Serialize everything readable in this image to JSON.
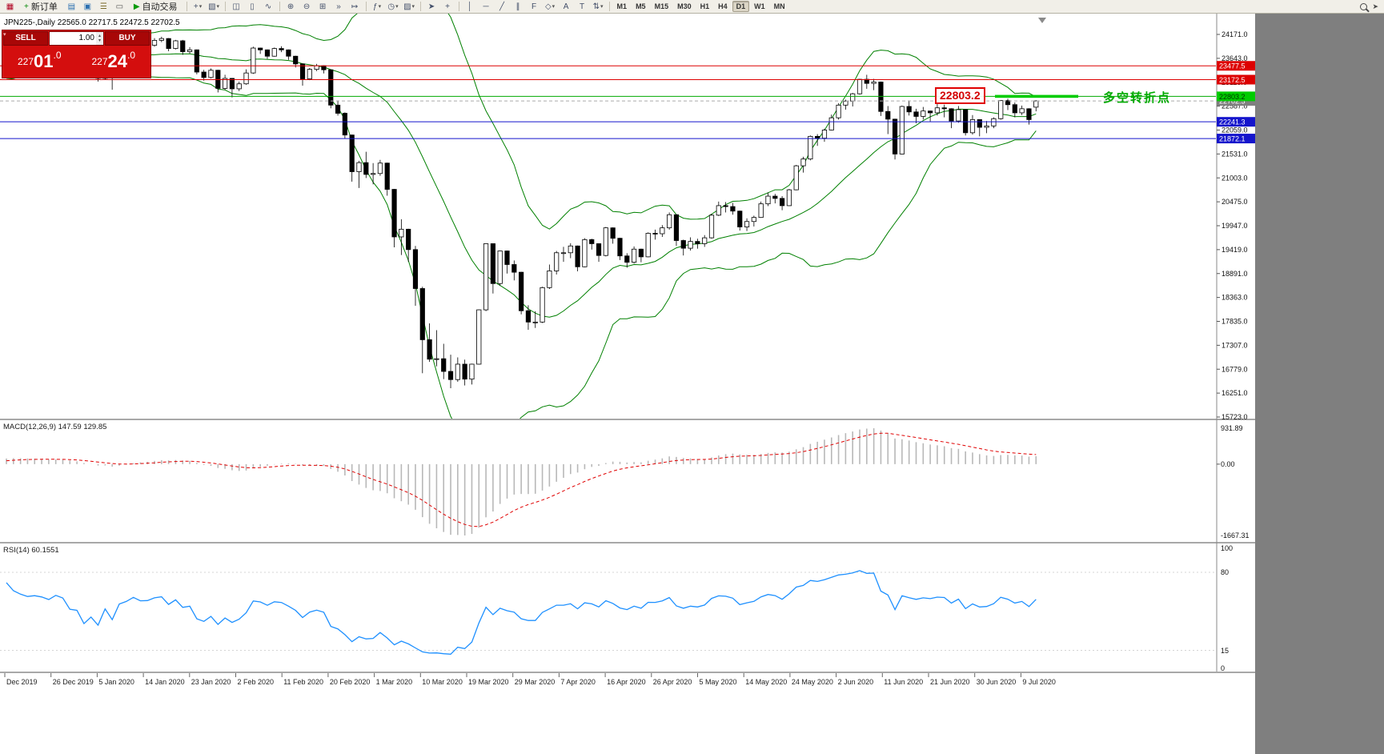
{
  "toolbar": {
    "items": [
      {
        "name": "chart-window-icon",
        "glyph": "▦",
        "color": "#b00020"
      },
      {
        "name": "new-order-button",
        "type": "button",
        "glyph": "+",
        "glyph_color": "#0a8a0a",
        "label": "新订单"
      },
      {
        "name": "market-watch-icon",
        "glyph": "▤",
        "color": "#2a6fb0"
      },
      {
        "name": "data-window-icon",
        "glyph": "▣",
        "color": "#2a6fb0"
      },
      {
        "name": "navigator-icon",
        "glyph": "☰",
        "color": "#7a6a2a"
      },
      {
        "name": "terminal-icon",
        "glyph": "▭",
        "color": "#555555"
      },
      {
        "name": "auto-trading-button",
        "type": "button",
        "glyph": "▶",
        "glyph_color": "#0a9a0a",
        "label": "自动交易"
      },
      {
        "type": "sep"
      },
      {
        "name": "new-chart-icon",
        "glyph": "+",
        "caret": true
      },
      {
        "name": "profiles-icon",
        "glyph": "▧",
        "caret": true
      },
      {
        "type": "sep"
      },
      {
        "name": "bar-chart-icon",
        "glyph": "◫"
      },
      {
        "name": "candlestick-chart-icon",
        "glyph": "▯"
      },
      {
        "name": "line-chart-icon",
        "glyph": "∿"
      },
      {
        "type": "sep"
      },
      {
        "name": "zoom-in-icon",
        "glyph": "⊕"
      },
      {
        "name": "zoom-out-icon",
        "glyph": "⊖"
      },
      {
        "name": "tile-windows-icon",
        "glyph": "⊞"
      },
      {
        "name": "auto-scroll-icon",
        "glyph": "»"
      },
      {
        "name": "chart-shift-icon",
        "glyph": "↦"
      },
      {
        "type": "sep"
      },
      {
        "name": "indicators-icon",
        "glyph": "ƒ",
        "caret": true
      },
      {
        "name": "periods-icon",
        "glyph": "◷",
        "caret": true
      },
      {
        "name": "templates-icon",
        "glyph": "▨",
        "caret": true
      },
      {
        "type": "sep"
      },
      {
        "name": "cursor-icon",
        "glyph": "➤"
      },
      {
        "name": "crosshair-icon",
        "glyph": "+"
      },
      {
        "type": "sep"
      },
      {
        "name": "vertical-line-icon",
        "glyph": "│"
      },
      {
        "name": "horizontal-line-icon",
        "glyph": "─"
      },
      {
        "name": "trendline-icon",
        "glyph": "╱"
      },
      {
        "name": "channel-icon",
        "glyph": "∥"
      },
      {
        "name": "fibonacci-icon",
        "glyph": "F"
      },
      {
        "name": "shapes-icon",
        "glyph": "◇",
        "caret": true
      },
      {
        "name": "text-icon",
        "glyph": "A"
      },
      {
        "name": "label-icon",
        "glyph": "T"
      },
      {
        "name": "arrows-icon",
        "glyph": "⇅",
        "caret": true
      },
      {
        "type": "sep"
      }
    ],
    "timeframes": [
      "M1",
      "M5",
      "M15",
      "M30",
      "H1",
      "H4",
      "D1",
      "W1",
      "MN"
    ],
    "active_timeframe": "D1"
  },
  "chart": {
    "info_line": "JPN225-,Daily 22565.0 22717.5 22472.5 22702.5",
    "symbol": "JPN225-",
    "period": "Daily",
    "price_scale_ticks": [
      "24171.0",
      "23643.0",
      "23115.0",
      "22587.0",
      "22059.0",
      "21531.0",
      "21003.0",
      "20475.0",
      "19947.0",
      "19419.0",
      "18891.0",
      "18363.0",
      "17835.0",
      "17307.0",
      "16779.0",
      "16251.0",
      "15723.0"
    ],
    "trade_panel": {
      "sell_label": "SELL",
      "buy_label": "BUY",
      "volume": "1.00",
      "sell_price": "22701.0",
      "buy_price": "22724.0"
    },
    "annotations": {
      "pivot_label": "22803.2",
      "note_text": "多空转折点"
    }
  },
  "macd": {
    "label": "MACD(12,26,9) 147.59 129.85",
    "scale": {
      "max": "931.89",
      "zero": "0.00",
      "min": "-1667.31"
    }
  },
  "rsi": {
    "label": "RSI(14) 60.1551",
    "scale": [
      "100",
      "80",
      "15",
      "0"
    ]
  },
  "date_axis": [
    "Dec 2019",
    "26 Dec 2019",
    "5 Jan 2020",
    "14 Jan 2020",
    "23 Jan 2020",
    "2 Feb 2020",
    "11 Feb 2020",
    "20 Feb 2020",
    "1 Mar 2020",
    "10 Mar 2020",
    "19 Mar 2020",
    "29 Mar 2020",
    "7 Apr 2020",
    "16 Apr 2020",
    "26 Apr 2020",
    "5 May 2020",
    "14 May 2020",
    "24 May 2020",
    "2 Jun 2020",
    "11 Jun 2020",
    "21 Jun 2020",
    "30 Jun 2020",
    "9 Jul 2020"
  ],
  "chart_data": {
    "type": "candlestick",
    "symbol": "JPN225-",
    "timeframe": "Daily",
    "ylim": [
      15723,
      24171
    ],
    "tick_step": 528,
    "latest_ohlc": {
      "open": 22565.0,
      "high": 22717.5,
      "low": 22472.5,
      "close": 22702.5
    },
    "overlays": {
      "bollinger_period": 20,
      "bollinger_deviation": 2,
      "macd": [
        12,
        26,
        9
      ],
      "rsi_period": 14
    },
    "hlines": [
      {
        "name": "resistance-line-upper",
        "price": 23477.5,
        "label": "23477.5",
        "color": "#dd0000",
        "label_bg": "#dd0000",
        "label_fg": "#ffffff"
      },
      {
        "name": "resistance-line-lower",
        "price": 23172.5,
        "label": "23172.5",
        "color": "#dd0000",
        "label_bg": "#dd0000",
        "label_fg": "#ffffff"
      },
      {
        "name": "pivot-line",
        "price": 22803.2,
        "label": "22803.2",
        "color": "#00aa00",
        "label_bg": "#00cc00",
        "label_fg": "#003300"
      },
      {
        "name": "support-line-upper",
        "price": 22241.3,
        "label": "22241.3",
        "color": "#1515cc",
        "label_bg": "#1515cc",
        "label_fg": "#ffffff"
      },
      {
        "name": "support-line-lower",
        "price": 21872.1,
        "label": "21872.1",
        "color": "#1515cc",
        "label_bg": "#1515cc",
        "label_fg": "#ffffff"
      }
    ],
    "bid_line": {
      "price": 22702.5,
      "label": "22702.5",
      "color": "#aaaaaa",
      "label_bg": "#7f7f7f",
      "label_fg": "#ffffff"
    },
    "pivot_segment": {
      "price": 22803.2,
      "color": "#00cc00"
    },
    "warmup_closes": [
      23350,
      23280,
      23450,
      23400,
      23520,
      23600,
      23680,
      23550,
      23610,
      23300,
      23380,
      23450,
      23520,
      23580,
      23640,
      23700,
      23760,
      23830,
      23900
    ],
    "candles": [
      [
        23950,
        24090,
        23900,
        24060
      ],
      [
        24060,
        24080,
        23870,
        23930
      ],
      [
        23930,
        23980,
        23820,
        23870
      ],
      [
        23870,
        23920,
        23790,
        23830
      ],
      [
        23830,
        23890,
        23800,
        23850
      ],
      [
        23850,
        23880,
        23790,
        23830
      ],
      [
        23830,
        23860,
        23760,
        23790
      ],
      [
        23790,
        23900,
        23770,
        23880
      ],
      [
        23880,
        23910,
        23800,
        23840
      ],
      [
        23840,
        23860,
        23610,
        23650
      ],
      [
        23650,
        23700,
        23580,
        23630
      ],
      [
        23630,
        23660,
        23250,
        23320
      ],
      [
        23320,
        23480,
        23280,
        23440
      ],
      [
        23440,
        23450,
        23130,
        23200
      ],
      [
        23200,
        23610,
        23180,
        23580
      ],
      [
        23580,
        23590,
        22950,
        23210
      ],
      [
        23210,
        23760,
        23200,
        23740
      ],
      [
        23740,
        23880,
        23710,
        23850
      ],
      [
        23850,
        24050,
        23830,
        24030
      ],
      [
        24030,
        24060,
        23870,
        23920
      ],
      [
        23920,
        23960,
        23850,
        23930
      ],
      [
        23930,
        24090,
        23900,
        24040
      ],
      [
        24040,
        24120,
        24000,
        24080
      ],
      [
        24080,
        24090,
        23800,
        23860
      ],
      [
        23860,
        24050,
        23840,
        24030
      ],
      [
        24030,
        24050,
        23720,
        23790
      ],
      [
        23790,
        23890,
        23750,
        23830
      ],
      [
        23830,
        23840,
        23290,
        23340
      ],
      [
        23340,
        23390,
        23150,
        23220
      ],
      [
        23220,
        23420,
        23200,
        23380
      ],
      [
        23380,
        23390,
        22890,
        22980
      ],
      [
        22980,
        23280,
        22950,
        23200
      ],
      [
        23200,
        23210,
        22780,
        22970
      ],
      [
        22970,
        23130,
        22920,
        23080
      ],
      [
        23080,
        23400,
        23060,
        23320
      ],
      [
        23320,
        23900,
        23300,
        23870
      ],
      [
        23870,
        23880,
        23740,
        23830
      ],
      [
        23830,
        23840,
        23630,
        23690
      ],
      [
        23690,
        23880,
        23680,
        23860
      ],
      [
        23860,
        23910,
        23780,
        23830
      ],
      [
        23830,
        23840,
        23610,
        23690
      ],
      [
        23690,
        23700,
        23440,
        23520
      ],
      [
        23520,
        23530,
        23040,
        23190
      ],
      [
        23190,
        23430,
        23160,
        23400
      ],
      [
        23400,
        23520,
        23360,
        23480
      ],
      [
        23480,
        23490,
        23310,
        23390
      ],
      [
        23390,
        23400,
        22540,
        22610
      ],
      [
        22610,
        22710,
        22380,
        22430
      ],
      [
        22430,
        22450,
        21870,
        21950
      ],
      [
        21950,
        21960,
        20920,
        21140
      ],
      [
        21140,
        21380,
        20780,
        21340
      ],
      [
        21340,
        21580,
        21000,
        21080
      ],
      [
        21080,
        21330,
        20860,
        21100
      ],
      [
        21100,
        21400,
        21050,
        21330
      ],
      [
        21330,
        21340,
        20610,
        20750
      ],
      [
        20750,
        20760,
        19470,
        19700
      ],
      [
        19700,
        20090,
        19300,
        19870
      ],
      [
        19870,
        19880,
        19150,
        19420
      ],
      [
        19420,
        19500,
        18180,
        18560
      ],
      [
        18560,
        18600,
        16690,
        17430
      ],
      [
        17430,
        17790,
        16940,
        17000
      ],
      [
        17000,
        17640,
        16840,
        17010
      ],
      [
        17010,
        17340,
        16560,
        16730
      ],
      [
        16730,
        17100,
        16360,
        16550
      ],
      [
        16550,
        17040,
        16500,
        16890
      ],
      [
        16890,
        16990,
        16420,
        16560
      ],
      [
        16560,
        16900,
        16440,
        16890
      ],
      [
        16890,
        18100,
        16880,
        18090
      ],
      [
        18090,
        19560,
        18060,
        19550
      ],
      [
        19550,
        19560,
        18450,
        18670
      ],
      [
        18670,
        19400,
        18620,
        19390
      ],
      [
        19390,
        19400,
        18890,
        19090
      ],
      [
        19090,
        19180,
        18740,
        18920
      ],
      [
        18920,
        18930,
        17990,
        18070
      ],
      [
        18070,
        18190,
        17650,
        17820
      ],
      [
        17820,
        18060,
        17690,
        17820
      ],
      [
        17820,
        18600,
        17800,
        18580
      ],
      [
        18580,
        19090,
        18550,
        18950
      ],
      [
        18950,
        19390,
        18870,
        19350
      ],
      [
        19350,
        19480,
        19150,
        19350
      ],
      [
        19350,
        19560,
        19230,
        19500
      ],
      [
        19500,
        19510,
        18940,
        19040
      ],
      [
        19040,
        19670,
        19030,
        19640
      ],
      [
        19640,
        19660,
        19420,
        19550
      ],
      [
        19550,
        19560,
        19150,
        19290
      ],
      [
        19290,
        19920,
        19270,
        19900
      ],
      [
        19900,
        19910,
        19550,
        19670
      ],
      [
        19670,
        19680,
        19190,
        19280
      ],
      [
        19280,
        19340,
        19020,
        19140
      ],
      [
        19140,
        19490,
        19110,
        19430
      ],
      [
        19430,
        19440,
        19140,
        19260
      ],
      [
        19260,
        19800,
        19250,
        19780
      ],
      [
        19780,
        19860,
        19640,
        19770
      ],
      [
        19770,
        19960,
        19700,
        19900
      ],
      [
        19900,
        20240,
        19860,
        20190
      ],
      [
        20190,
        20200,
        19500,
        19620
      ],
      [
        19620,
        19640,
        19290,
        19450
      ],
      [
        19450,
        19690,
        19400,
        19600
      ],
      [
        19600,
        19660,
        19440,
        19550
      ],
      [
        19550,
        19740,
        19480,
        19680
      ],
      [
        19680,
        20210,
        19660,
        20180
      ],
      [
        20180,
        20480,
        20160,
        20390
      ],
      [
        20390,
        20470,
        20240,
        20370
      ],
      [
        20370,
        20450,
        20190,
        20270
      ],
      [
        20270,
        20280,
        19840,
        19920
      ],
      [
        19920,
        20110,
        19830,
        20040
      ],
      [
        20040,
        20170,
        19930,
        20130
      ],
      [
        20130,
        20480,
        20120,
        20430
      ],
      [
        20430,
        20680,
        20380,
        20600
      ],
      [
        20600,
        20650,
        20440,
        20550
      ],
      [
        20550,
        20600,
        20290,
        20390
      ],
      [
        20390,
        20760,
        20380,
        20740
      ],
      [
        20740,
        21290,
        20730,
        21270
      ],
      [
        21270,
        21470,
        21120,
        21420
      ],
      [
        21420,
        21940,
        21390,
        21920
      ],
      [
        21920,
        21970,
        21710,
        21880
      ],
      [
        21880,
        22090,
        21800,
        22060
      ],
      [
        22060,
        22400,
        22050,
        22330
      ],
      [
        22330,
        22650,
        22290,
        22610
      ],
      [
        22610,
        22730,
        22510,
        22700
      ],
      [
        22700,
        22880,
        22580,
        22860
      ],
      [
        22860,
        23190,
        22840,
        23180
      ],
      [
        23180,
        23280,
        22970,
        23090
      ],
      [
        23090,
        23190,
        22940,
        23120
      ],
      [
        23120,
        23130,
        22370,
        22470
      ],
      [
        22470,
        22590,
        21970,
        22300
      ],
      [
        22300,
        22310,
        21410,
        21530
      ],
      [
        21530,
        22600,
        21520,
        22580
      ],
      [
        22580,
        22710,
        22380,
        22460
      ],
      [
        22460,
        22530,
        22210,
        22360
      ],
      [
        22360,
        22570,
        22290,
        22480
      ],
      [
        22480,
        22490,
        22240,
        22440
      ],
      [
        22440,
        22640,
        22380,
        22550
      ],
      [
        22550,
        22620,
        22340,
        22530
      ],
      [
        22530,
        22540,
        22100,
        22260
      ],
      [
        22260,
        22590,
        22220,
        22510
      ],
      [
        22510,
        22520,
        21940,
        22000
      ],
      [
        22000,
        22390,
        21960,
        22290
      ],
      [
        22290,
        22300,
        21920,
        22120
      ],
      [
        22120,
        22260,
        21990,
        22150
      ],
      [
        22150,
        22340,
        22100,
        22310
      ],
      [
        22310,
        22720,
        22290,
        22710
      ],
      [
        22710,
        22750,
        22500,
        22620
      ],
      [
        22620,
        22670,
        22340,
        22440
      ],
      [
        22440,
        22600,
        22390,
        22530
      ],
      [
        22530,
        22540,
        22180,
        22290
      ],
      [
        22565,
        22717.5,
        22472.5,
        22702.5
      ]
    ]
  }
}
